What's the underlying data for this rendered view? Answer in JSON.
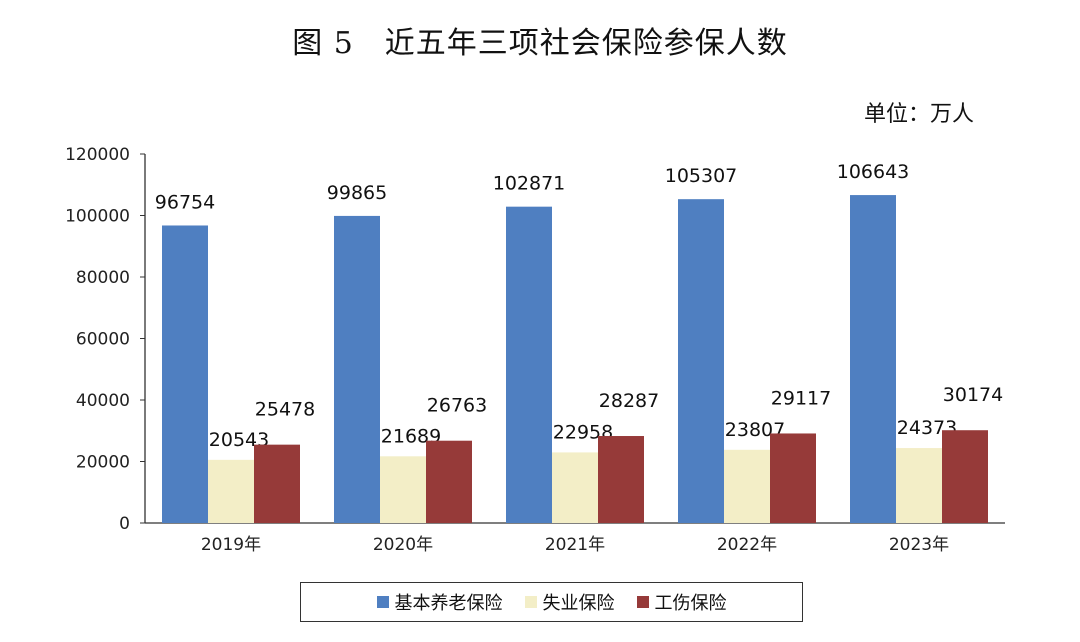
{
  "title": "图 5　近五年三项社会保险参保人数",
  "unit": "单位：万人",
  "colors": {
    "series_1": "#4f7fc1",
    "series_2": "#f3eec7",
    "series_3": "#963a39"
  },
  "chart_data": {
    "type": "bar",
    "title": "图 5　近五年三项社会保险参保人数",
    "ylabel": "",
    "xlabel": "",
    "ylim": [
      0,
      120000
    ],
    "yticks": [
      0,
      20000,
      40000,
      60000,
      80000,
      100000,
      120000
    ],
    "categories": [
      "2019年",
      "2020年",
      "2021年",
      "2022年",
      "2023年"
    ],
    "series": [
      {
        "name": "基本养老保险",
        "values": [
          96754,
          99865,
          102871,
          105307,
          106643
        ]
      },
      {
        "name": "失业保险",
        "values": [
          20543,
          21689,
          22958,
          23807,
          24373
        ]
      },
      {
        "name": "工伤保险",
        "values": [
          25478,
          26763,
          28287,
          29117,
          30174
        ]
      }
    ],
    "legend": "bottom",
    "grid": false
  }
}
